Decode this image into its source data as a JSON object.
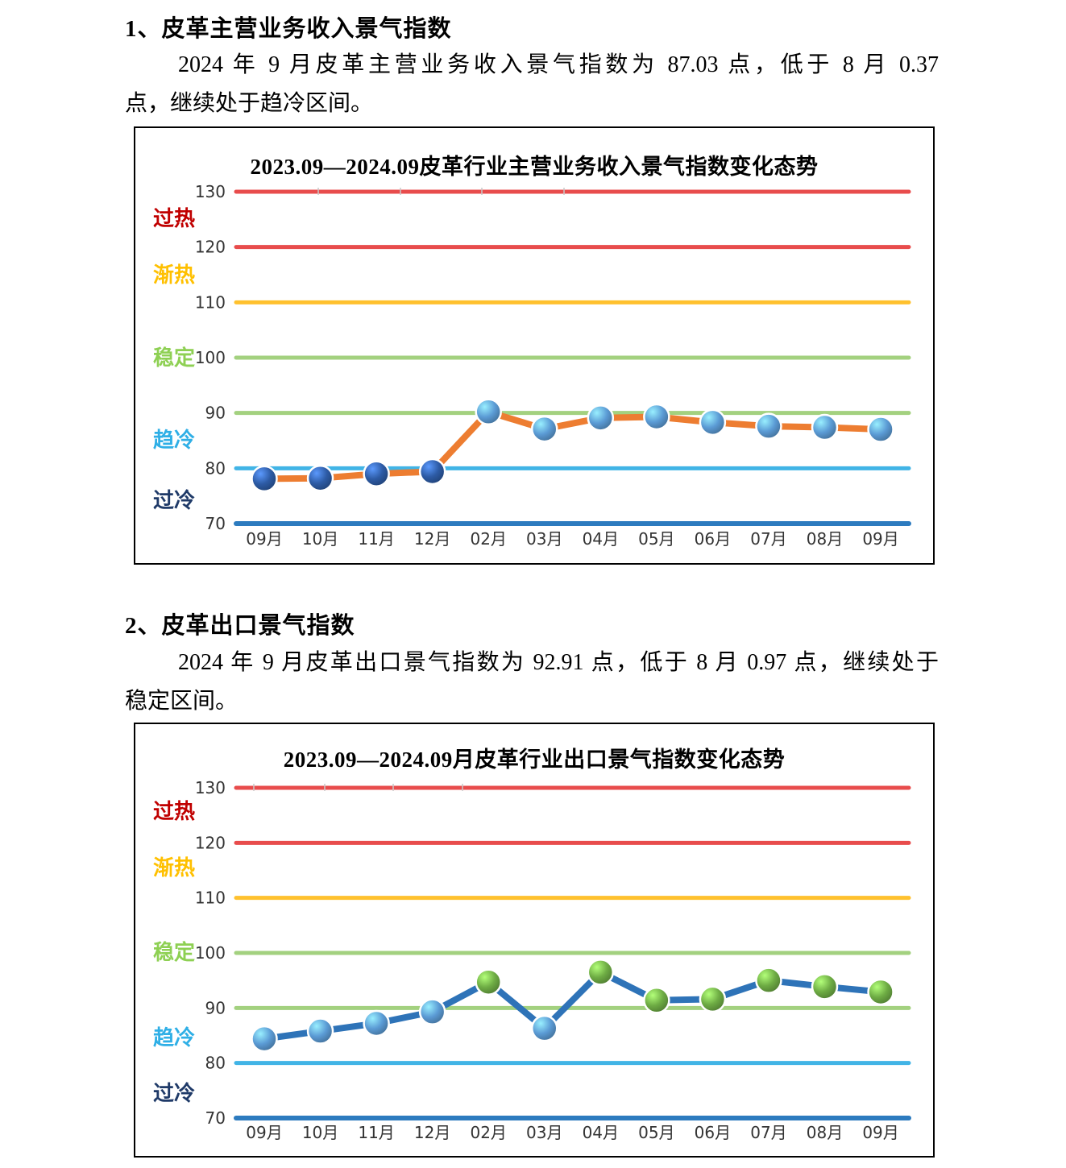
{
  "sections": [
    {
      "heading": "1、皮革主营业务收入景气指数",
      "paragraph_lines": [
        "2024 年 9 月皮革主营业务收入景气指数为 87.03 点，低于 8 月 0.37",
        "点，继续处于趋冷区间。"
      ]
    },
    {
      "heading": "2、皮革出口景气指数",
      "paragraph_lines": [
        "2024 年 9 月皮革出口景气指数为 92.91 点，低于 8 月 0.97 点，继续处于",
        "稳定区间。"
      ]
    }
  ],
  "zone_labels": [
    {
      "label": "过热",
      "color": "#C00000"
    },
    {
      "label": "渐热",
      "color": "#FFC000"
    },
    {
      "label": "稳定",
      "color": "#8ED053"
    },
    {
      "label": "趋冷",
      "color": "#2FAFE6"
    },
    {
      "label": "过冷",
      "color": "#1F3A68"
    }
  ],
  "chart_data": [
    {
      "type": "line",
      "title": "2023.09—2024.09皮革行业主营业务收入景气指数变化态势",
      "categories": [
        "09月",
        "10月",
        "11月",
        "12月",
        "02月",
        "03月",
        "04月",
        "05月",
        "06月",
        "07月",
        "08月",
        "09月"
      ],
      "series": [
        {
          "name": "皮革主营业务收入景气指数",
          "values": [
            78.1,
            78.2,
            79.0,
            79.4,
            90.2,
            87.1,
            89.1,
            89.3,
            88.3,
            87.6,
            87.4,
            87.03
          ],
          "line_color": "#ED7D31",
          "marker_colors": [
            "#2D5BA5",
            "#2D5BA5",
            "#2D5BA5",
            "#2D5BA5",
            "#5B9BD5",
            "#5B9BD5",
            "#5B9BD5",
            "#5B9BD5",
            "#5B9BD5",
            "#5B9BD5",
            "#5B9BD5",
            "#5B9BD5"
          ]
        }
      ],
      "ylim": [
        70,
        130
      ],
      "yticks": [
        130,
        120,
        110,
        100,
        90,
        80,
        70
      ],
      "band_lines": [
        {
          "value": 130,
          "color": "#E84C4C"
        },
        {
          "value": 120,
          "color": "#E84C4C"
        },
        {
          "value": 110,
          "color": "#FFC12E"
        },
        {
          "value": 100,
          "color": "#A3D17F"
        },
        {
          "value": 90,
          "color": "#A3D17F"
        },
        {
          "value": 80,
          "color": "#41B4E6"
        },
        {
          "value": 70,
          "color": "#2D7BBF"
        }
      ],
      "grid": "horizontal-bands",
      "legend": "none"
    },
    {
      "type": "line",
      "title": "2023.09—2024.09月皮革行业出口景气指数变化态势",
      "categories": [
        "09月",
        "10月",
        "11月",
        "12月",
        "02月",
        "03月",
        "04月",
        "05月",
        "06月",
        "07月",
        "08月",
        "09月"
      ],
      "series": [
        {
          "name": "皮革出口景气指数",
          "values": [
            84.4,
            85.8,
            87.2,
            89.3,
            94.7,
            86.3,
            96.5,
            91.4,
            91.6,
            95.0,
            93.88,
            92.91
          ],
          "line_color": "#2E73B8",
          "marker_colors": [
            "#5B9BD5",
            "#5B9BD5",
            "#5B9BD5",
            "#5B9BD5",
            "#6EAC44",
            "#5B9BD5",
            "#6EAC44",
            "#6EAC44",
            "#6EAC44",
            "#6EAC44",
            "#6EAC44",
            "#6EAC44"
          ]
        }
      ],
      "ylim": [
        70,
        130
      ],
      "yticks": [
        130,
        120,
        110,
        100,
        90,
        80,
        70
      ],
      "band_lines": [
        {
          "value": 130,
          "color": "#E84C4C"
        },
        {
          "value": 120,
          "color": "#E84C4C"
        },
        {
          "value": 110,
          "color": "#FFC12E"
        },
        {
          "value": 100,
          "color": "#A3D17F"
        },
        {
          "value": 90,
          "color": "#A3D17F"
        },
        {
          "value": 80,
          "color": "#41B4E6"
        },
        {
          "value": 70,
          "color": "#2D7BBF"
        }
      ],
      "grid": "horizontal-bands",
      "legend": "none"
    }
  ]
}
